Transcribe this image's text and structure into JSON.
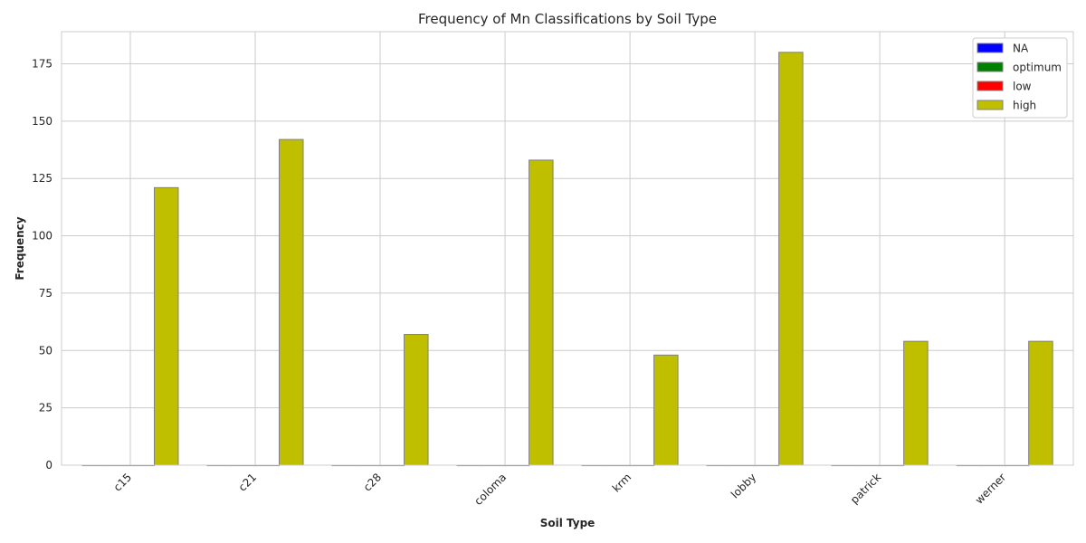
{
  "chart_data": {
    "type": "bar",
    "title": "Frequency of Mn Classifications by Soil Type",
    "xlabel": "Soil Type",
    "ylabel": "Frequency",
    "categories": [
      "c15",
      "c21",
      "c28",
      "coloma",
      "krm",
      "lobby",
      "patrick",
      "werner"
    ],
    "series": [
      {
        "name": "NA",
        "color": "#0000ff",
        "values": [
          0,
          0,
          0,
          0,
          0,
          0,
          0,
          0
        ]
      },
      {
        "name": "optimum",
        "color": "#008000",
        "values": [
          0,
          0,
          0,
          0,
          0,
          0,
          0,
          0
        ]
      },
      {
        "name": "low",
        "color": "#ff0000",
        "values": [
          0,
          0,
          0,
          0,
          0,
          0,
          0,
          0
        ]
      },
      {
        "name": "high",
        "color": "#bfbf00",
        "values": [
          121,
          142,
          57,
          133,
          48,
          180,
          54,
          54
        ]
      }
    ],
    "ylim": [
      0,
      189
    ],
    "yticks": [
      0,
      25,
      50,
      75,
      100,
      125,
      150,
      175
    ],
    "grid": true,
    "legend_position": "top-right"
  }
}
